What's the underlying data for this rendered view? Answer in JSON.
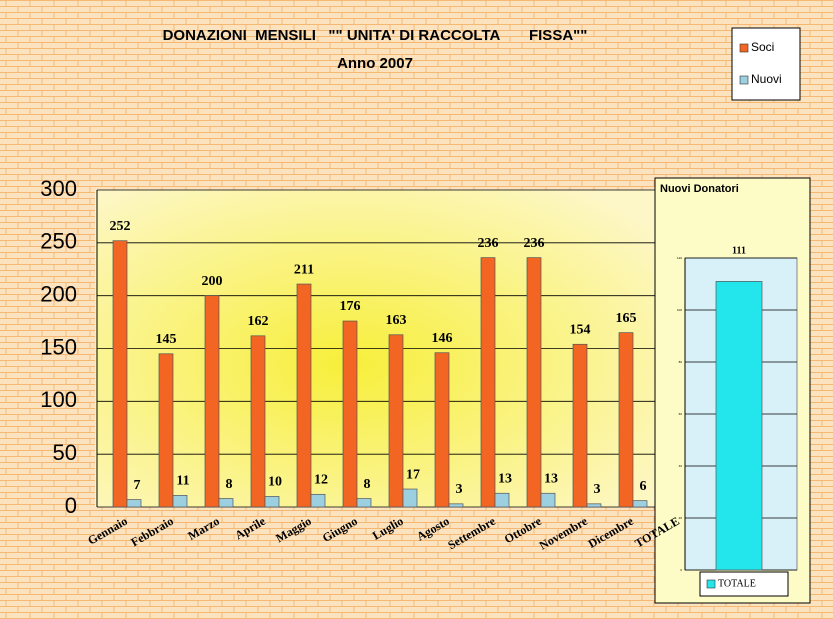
{
  "chart_data": [
    {
      "type": "bar",
      "title": "DONAZIONI  MENSILI   \"\" UNITA' DI RACCOLTA       FISSA\"\"",
      "subtitle": "Anno 2007",
      "categories": [
        "Gennaio",
        "Febbraio",
        "Marzo",
        "Aprile",
        "Maggio",
        "Giugno",
        "Luglio",
        "Agosto",
        "Settembre",
        "Ottobre",
        "Novembre",
        "Dicembre",
        "TOTALE"
      ],
      "series": [
        {
          "name": "Soci",
          "color": "#f26522",
          "values": [
            252,
            145,
            200,
            162,
            211,
            176,
            163,
            146,
            236,
            236,
            154,
            165,
            null
          ]
        },
        {
          "name": "Nuovi",
          "color": "#9ccfe0",
          "values": [
            7,
            11,
            8,
            10,
            12,
            8,
            17,
            3,
            13,
            13,
            3,
            6,
            null
          ]
        }
      ],
      "ylim": [
        0,
        300
      ],
      "yticks": [
        0,
        50,
        100,
        150,
        200,
        250,
        300
      ],
      "grid": true,
      "legend": "top-right"
    },
    {
      "type": "bar",
      "title": "Nuovi Donatori",
      "categories": [
        null
      ],
      "series": [
        {
          "name": "TOTALE",
          "color": "#22e6ec",
          "values": [
            111
          ]
        }
      ],
      "ylim": [
        0,
        120
      ],
      "yticks": [
        0,
        20,
        40,
        60,
        80,
        100,
        120
      ],
      "grid": true,
      "legend": "bottom"
    }
  ]
}
